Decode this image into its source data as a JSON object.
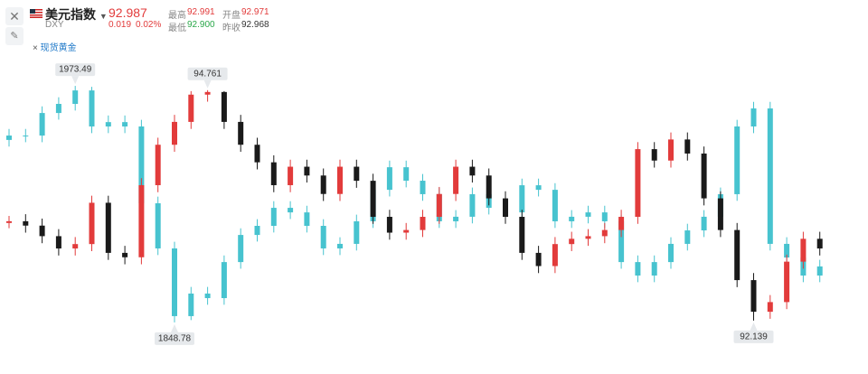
{
  "header": {
    "name": "美元指数",
    "code": "DXY",
    "price": "92.987",
    "change": "0.019",
    "change_pct": "0.02%",
    "stats": [
      {
        "label": "最高",
        "value": "92.991"
      },
      {
        "label": "开盘",
        "value": "92.971"
      },
      {
        "label": "最低",
        "value": "92.900"
      },
      {
        "label": "昨收",
        "value": "92.968"
      }
    ],
    "overlay": {
      "icon": "×",
      "name": "现货黄金"
    }
  },
  "chart_data": {
    "type": "candlestick",
    "series": [
      {
        "name": "现货黄金",
        "color": "#47c3cf",
        "ylim": [
          1835.4,
          1990.2
        ],
        "max_label": "1973.49",
        "min_label": "1848.78",
        "candles": [
          [
            1945.0,
            1950.8,
            1941.5,
            1947.3
          ],
          [
            1947.3,
            1950.8,
            1943.8,
            1947.3
          ],
          [
            1947.3,
            1962.7,
            1943.8,
            1959.2
          ],
          [
            1959.2,
            1967.5,
            1955.7,
            1964.0
          ],
          [
            1964.0,
            1973.49,
            1960.5,
            1971.1
          ],
          [
            1971.1,
            1973.0,
            1948.6,
            1952.1
          ],
          [
            1952.1,
            1957.9,
            1948.6,
            1954.4
          ],
          [
            1954.4,
            1957.9,
            1948.6,
            1952.1
          ],
          [
            1952.1,
            1955.6,
            1908.1,
            1911.6
          ],
          [
            1911.6,
            1915.1,
            1884.3,
            1887.8
          ],
          [
            1887.8,
            1891.3,
            1848.78,
            1852.1
          ],
          [
            1852.1,
            1867.5,
            1850.0,
            1864.0
          ],
          [
            1864.0,
            1867.5,
            1858.1,
            1861.6
          ],
          [
            1861.6,
            1884.1,
            1858.1,
            1880.6
          ],
          [
            1880.6,
            1898.4,
            1877.1,
            1894.9
          ],
          [
            1894.9,
            1903.2,
            1891.4,
            1899.7
          ],
          [
            1899.7,
            1912.7,
            1896.2,
            1909.2
          ],
          [
            1909.2,
            1912.7,
            1903.3,
            1906.8
          ],
          [
            1906.8,
            1910.3,
            1896.2,
            1899.7
          ],
          [
            1899.7,
            1903.2,
            1884.3,
            1887.8
          ],
          [
            1887.8,
            1893.7,
            1884.3,
            1890.2
          ],
          [
            1890.2,
            1905.6,
            1886.7,
            1902.1
          ],
          [
            1902.1,
            1922.2,
            1898.6,
            1918.7
          ],
          [
            1918.7,
            1934.1,
            1915.2,
            1930.6
          ],
          [
            1930.6,
            1934.1,
            1920.0,
            1923.5
          ],
          [
            1923.5,
            1927.0,
            1912.9,
            1916.4
          ],
          [
            1916.4,
            1919.9,
            1898.6,
            1902.1
          ],
          [
            1902.1,
            1908.0,
            1898.6,
            1904.5
          ],
          [
            1904.5,
            1919.9,
            1901.0,
            1916.4
          ],
          [
            1916.4,
            1919.9,
            1905.7,
            1909.2
          ],
          [
            1909.2,
            1912.7,
            1903.3,
            1906.8
          ],
          [
            1906.8,
            1924.6,
            1903.3,
            1921.1
          ],
          [
            1921.1,
            1924.6,
            1915.2,
            1918.7
          ],
          [
            1918.7,
            1922.2,
            1898.6,
            1902.1
          ],
          [
            1902.1,
            1908.0,
            1898.6,
            1904.5
          ],
          [
            1904.5,
            1910.3,
            1901.0,
            1906.8
          ],
          [
            1906.8,
            1910.3,
            1898.6,
            1902.1
          ],
          [
            1902.1,
            1905.6,
            1877.1,
            1880.6
          ],
          [
            1880.6,
            1884.1,
            1870.0,
            1873.5
          ],
          [
            1873.5,
            1884.1,
            1870.0,
            1880.6
          ],
          [
            1880.6,
            1893.7,
            1877.1,
            1890.2
          ],
          [
            1890.2,
            1900.8,
            1886.7,
            1897.3
          ],
          [
            1897.3,
            1908.0,
            1893.8,
            1904.5
          ],
          [
            1904.5,
            1919.9,
            1901.0,
            1916.4
          ],
          [
            1916.4,
            1955.6,
            1912.9,
            1952.1
          ],
          [
            1952.1,
            1965.1,
            1948.6,
            1961.6
          ],
          [
            1961.6,
            1965.1,
            1886.7,
            1890.2
          ],
          [
            1890.2,
            1893.7,
            1879.5,
            1883.0
          ],
          [
            1883.0,
            1886.5,
            1870.0,
            1873.5
          ],
          [
            1873.5,
            1881.8,
            1870.0,
            1878.3
          ]
        ]
      },
      {
        "name": "DXY",
        "up_color": "#e23b3b",
        "down_color": "#1a1a1a",
        "ylim": [
          91.83,
          95.17
        ],
        "max_label": "94.761",
        "min_label": "92.139",
        "candles": [
          [
            93.25,
            93.33,
            93.19,
            93.27
          ],
          [
            93.27,
            93.35,
            93.14,
            93.22
          ],
          [
            93.22,
            93.3,
            93.02,
            93.1
          ],
          [
            93.1,
            93.18,
            92.88,
            92.96
          ],
          [
            92.96,
            93.09,
            92.88,
            93.01
          ],
          [
            93.01,
            93.56,
            92.93,
            93.48
          ],
          [
            93.48,
            93.56,
            92.83,
            92.91
          ],
          [
            92.91,
            92.99,
            92.78,
            92.86
          ],
          [
            92.86,
            93.76,
            92.78,
            93.68
          ],
          [
            93.68,
            94.22,
            93.6,
            94.14
          ],
          [
            94.14,
            94.48,
            94.06,
            94.4
          ],
          [
            94.4,
            94.75,
            94.32,
            94.71
          ],
          [
            94.71,
            94.761,
            94.63,
            94.74
          ],
          [
            94.74,
            94.75,
            94.32,
            94.4
          ],
          [
            94.4,
            94.48,
            94.06,
            94.14
          ],
          [
            94.14,
            94.22,
            93.86,
            93.94
          ],
          [
            93.94,
            94.02,
            93.6,
            93.68
          ],
          [
            93.68,
            93.97,
            93.6,
            93.89
          ],
          [
            93.89,
            93.97,
            93.71,
            93.79
          ],
          [
            93.79,
            93.87,
            93.5,
            93.58
          ],
          [
            93.58,
            93.97,
            93.5,
            93.89
          ],
          [
            93.89,
            93.97,
            93.65,
            93.73
          ],
          [
            93.73,
            93.81,
            93.24,
            93.32
          ],
          [
            93.32,
            93.4,
            93.06,
            93.14
          ],
          [
            93.14,
            93.25,
            93.06,
            93.17
          ],
          [
            93.17,
            93.4,
            93.09,
            93.32
          ],
          [
            93.32,
            93.66,
            93.24,
            93.58
          ],
          [
            93.58,
            93.97,
            93.5,
            93.89
          ],
          [
            93.89,
            93.97,
            93.71,
            93.79
          ],
          [
            93.79,
            93.87,
            93.45,
            93.53
          ],
          [
            93.53,
            93.61,
            93.24,
            93.32
          ],
          [
            93.32,
            93.4,
            92.83,
            92.91
          ],
          [
            92.91,
            92.99,
            92.68,
            92.76
          ],
          [
            92.76,
            93.09,
            92.68,
            93.01
          ],
          [
            93.01,
            93.15,
            92.93,
            93.07
          ],
          [
            93.07,
            93.18,
            92.99,
            93.1
          ],
          [
            93.1,
            93.25,
            93.02,
            93.17
          ],
          [
            93.17,
            93.4,
            93.09,
            93.32
          ],
          [
            93.32,
            94.17,
            93.24,
            94.09
          ],
          [
            94.09,
            94.17,
            93.88,
            93.96
          ],
          [
            93.96,
            94.28,
            93.88,
            94.2
          ],
          [
            94.2,
            94.28,
            93.96,
            94.04
          ],
          [
            94.04,
            94.12,
            93.45,
            93.53
          ],
          [
            93.53,
            93.61,
            93.09,
            93.17
          ],
          [
            93.17,
            93.25,
            92.52,
            92.6
          ],
          [
            92.6,
            92.68,
            92.139,
            92.24
          ],
          [
            92.24,
            92.43,
            92.16,
            92.35
          ],
          [
            92.35,
            92.89,
            92.27,
            92.81
          ],
          [
            92.81,
            93.15,
            92.73,
            93.07
          ],
          [
            93.07,
            93.15,
            92.88,
            92.96
          ]
        ]
      }
    ]
  }
}
